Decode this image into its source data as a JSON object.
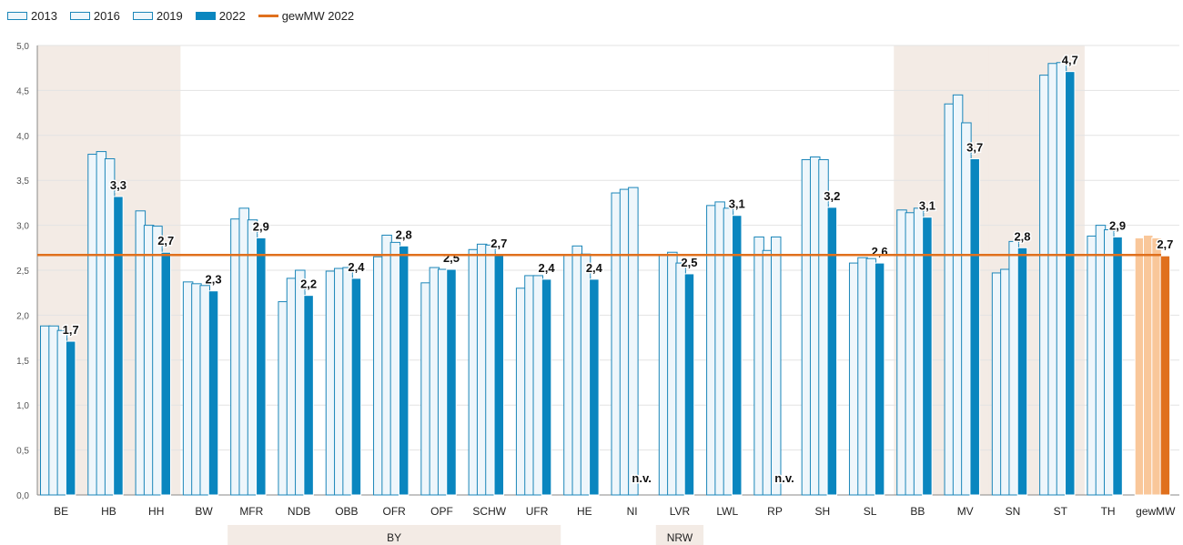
{
  "legend": [
    {
      "label": "2013",
      "kind": "box",
      "fill": "#eef6fb",
      "stroke": "#1b86b9"
    },
    {
      "label": "2016",
      "kind": "box",
      "fill": "#eef6fb",
      "stroke": "#1b86b9"
    },
    {
      "label": "2019",
      "kind": "box",
      "fill": "#eef6fb",
      "stroke": "#1b86b9"
    },
    {
      "label": "2022",
      "kind": "box",
      "fill": "#0a86bf",
      "stroke": "#0a86bf"
    },
    {
      "label": "gewMW 2022",
      "kind": "line",
      "fill": "#e0701d",
      "stroke": "#e0701d"
    }
  ],
  "groups": [
    {
      "label": "BY"
    },
    {
      "label": "NRW"
    }
  ],
  "colors": {
    "light_fill": "#eef6fb",
    "light_stroke": "#1b86b9",
    "dark_fill": "#0a86bf",
    "mean_line": "#e0701d",
    "mw_light": "#f9c79a",
    "mw_dark": "#e0701d",
    "shade": "#f3ebe5"
  },
  "chart_data": {
    "type": "bar",
    "categories": [
      "BE",
      "HB",
      "HH",
      "BW",
      "MFR",
      "NDB",
      "OBB",
      "OFR",
      "OPF",
      "SCHW",
      "UFR",
      "HE",
      "NI",
      "LVR",
      "LWL",
      "RP",
      "SH",
      "SL",
      "BB",
      "MV",
      "SN",
      "ST",
      "TH",
      "gewMW"
    ],
    "series": [
      {
        "name": "2013",
        "values": [
          1.88,
          3.79,
          3.16,
          2.37,
          3.07,
          2.15,
          2.49,
          2.65,
          2.36,
          2.73,
          2.3,
          2.67,
          3.36,
          2.67,
          3.22,
          2.87,
          3.73,
          2.58,
          3.17,
          4.35,
          2.47,
          4.67,
          2.88,
          2.86
        ]
      },
      {
        "name": "2016",
        "values": [
          1.88,
          3.82,
          3.0,
          2.35,
          3.19,
          2.41,
          2.52,
          2.89,
          2.53,
          2.79,
          2.44,
          2.77,
          3.4,
          2.7,
          3.26,
          2.72,
          3.76,
          2.64,
          3.14,
          4.45,
          2.51,
          4.8,
          3.0,
          2.89
        ]
      },
      {
        "name": "2019",
        "values": [
          1.83,
          3.74,
          2.99,
          2.33,
          3.06,
          2.5,
          2.53,
          2.81,
          2.51,
          2.78,
          2.44,
          2.68,
          3.42,
          2.58,
          3.19,
          2.87,
          3.73,
          2.63,
          3.19,
          4.14,
          2.82,
          4.81,
          2.95,
          2.86
        ]
      },
      {
        "name": "2022",
        "values": [
          1.71,
          3.32,
          2.7,
          2.27,
          2.86,
          2.22,
          2.41,
          2.77,
          2.51,
          2.67,
          2.4,
          2.4,
          null,
          2.46,
          3.11,
          null,
          3.2,
          2.58,
          3.09,
          3.74,
          2.75,
          4.71,
          2.87,
          2.66
        ]
      }
    ],
    "labels_2022": [
      "1,7",
      "3,3",
      "2,7",
      "2,3",
      "2,9",
      "2,2",
      "2,4",
      "2,8",
      "2,5",
      "2,7",
      "2,4",
      "2,4",
      "n.v.",
      "2,5",
      "3,1",
      "n.v.",
      "3,2",
      "2,6",
      "3,1",
      "3,7",
      "2,8",
      "4,7",
      "2,9",
      "2,7"
    ],
    "mean_2022": 2.67,
    "yticks": [
      "0,0",
      "0,5",
      "1,0",
      "1,5",
      "2,0",
      "2,5",
      "3,0",
      "3,5",
      "4,0",
      "4,5",
      "5,0"
    ],
    "ylim": [
      0,
      5
    ],
    "shaded_categories": [
      "BE",
      "HB",
      "HH",
      "BB",
      "MV",
      "SN",
      "ST"
    ],
    "group_spans": [
      {
        "label": "BY",
        "from": "MFR",
        "to": "UFR"
      },
      {
        "label": "NRW",
        "from": "LVR",
        "to": "LVR"
      }
    ],
    "title": "",
    "xlabel": "",
    "ylabel": ""
  }
}
